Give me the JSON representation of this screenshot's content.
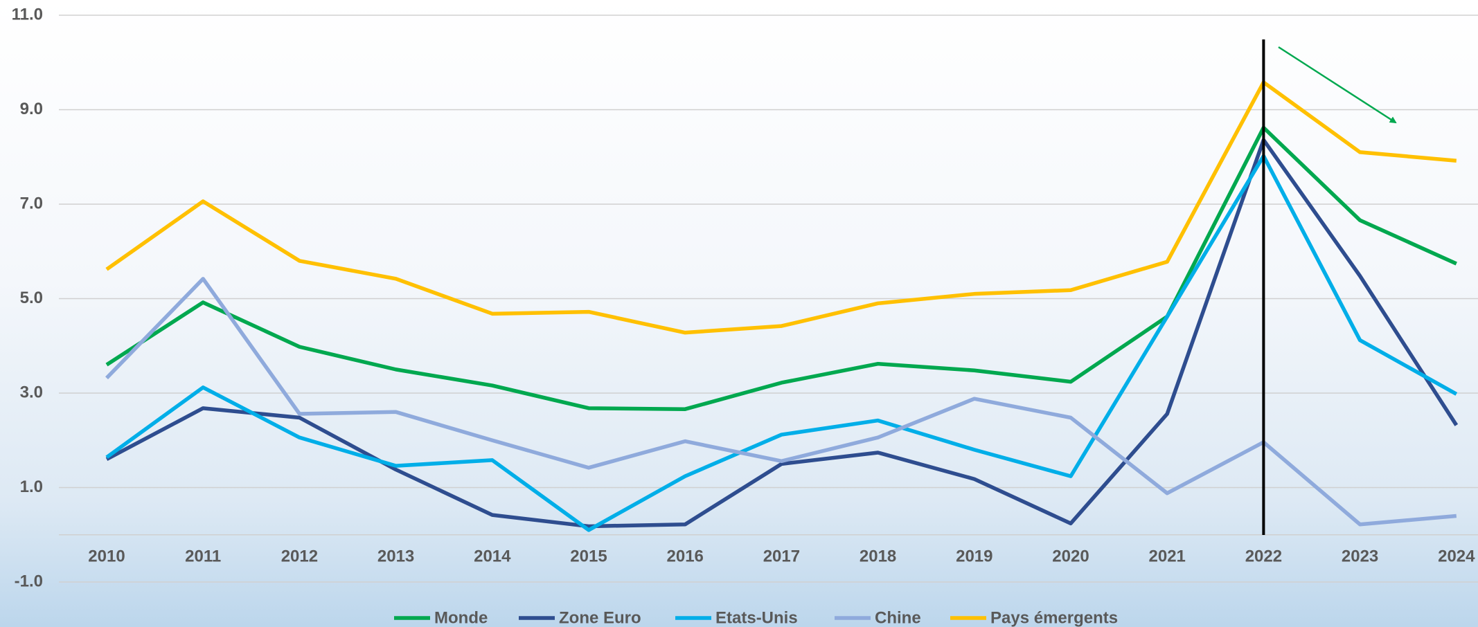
{
  "chart_data": {
    "type": "line",
    "categories": [
      "2010",
      "2011",
      "2012",
      "2013",
      "2014",
      "2015",
      "2016",
      "2017",
      "2018",
      "2019",
      "2020",
      "2021",
      "2022",
      "2023",
      "2024"
    ],
    "series": [
      {
        "name": "Monde",
        "color": "#00a84f",
        "values": [
          3.6,
          4.92,
          3.98,
          3.5,
          3.16,
          2.68,
          2.66,
          3.22,
          3.62,
          3.48,
          3.24,
          4.62,
          8.62,
          6.66,
          5.74
        ]
      },
      {
        "name": "Zone Euro",
        "color": "#2e4d8f",
        "values": [
          1.6,
          2.68,
          2.48,
          1.38,
          0.42,
          0.18,
          0.22,
          1.5,
          1.74,
          1.18,
          0.24,
          2.56,
          8.36,
          5.48,
          2.32
        ]
      },
      {
        "name": "Etats-Unis",
        "color": "#00aee8",
        "values": [
          1.64,
          3.12,
          2.06,
          1.46,
          1.58,
          0.1,
          1.24,
          2.12,
          2.42,
          1.8,
          1.24,
          4.62,
          8.02,
          4.12,
          2.98
        ]
      },
      {
        "name": "Chine",
        "color": "#8faadc",
        "values": [
          3.32,
          5.42,
          2.56,
          2.6,
          2.0,
          1.42,
          1.98,
          1.56,
          2.06,
          2.88,
          2.48,
          0.88,
          1.96,
          0.22,
          0.4
        ]
      },
      {
        "name": "Pays émergents",
        "color": "#ffc000",
        "values": [
          5.62,
          7.06,
          5.8,
          5.42,
          4.68,
          4.72,
          4.28,
          4.42,
          4.9,
          5.1,
          5.18,
          5.78,
          9.58,
          8.1,
          7.92
        ]
      }
    ],
    "ylim": [
      -1,
      11
    ],
    "yticks": [
      {
        "value": -1,
        "label": "-1.0"
      },
      {
        "value": 1,
        "label": "1.0"
      },
      {
        "value": 3,
        "label": "3.0"
      },
      {
        "value": 5,
        "label": "5.0"
      },
      {
        "value": 7,
        "label": "7.0"
      },
      {
        "value": 9,
        "label": "9.0"
      },
      {
        "value": 11,
        "label": "11.0"
      }
    ],
    "grid": true,
    "marker_category": "2022"
  }
}
